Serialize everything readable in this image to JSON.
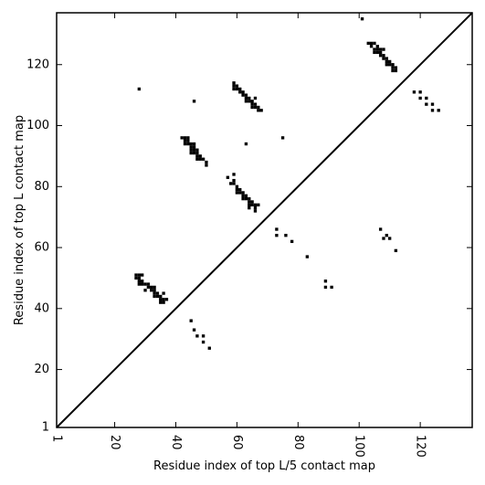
{
  "chart_data": {
    "type": "scatter",
    "xlabel": "Residue index of top L/5 contact map",
    "ylabel": "Residue index of top L contact map",
    "xlim": [
      1,
      137
    ],
    "ylim": [
      1,
      137
    ],
    "xticks": [
      1,
      20,
      40,
      60,
      80,
      100,
      120
    ],
    "yticks": [
      1,
      20,
      40,
      60,
      80,
      100,
      120
    ],
    "x_tick_labels": [
      "1",
      "20",
      "40",
      "60",
      "80",
      "100",
      "120"
    ],
    "y_tick_labels": [
      "1",
      "20",
      "40",
      "60",
      "80",
      "100",
      "120"
    ],
    "diagonal": true,
    "grid": false,
    "marker_color": "#000000",
    "series": [
      {
        "points": [
          [
            101,
            135
          ],
          [
            103,
            127
          ],
          [
            104,
            127
          ],
          [
            105,
            127
          ],
          [
            104,
            126
          ],
          [
            106,
            126
          ],
          [
            105,
            125
          ],
          [
            106,
            125
          ],
          [
            107,
            125
          ],
          [
            108,
            125
          ],
          [
            105,
            124
          ],
          [
            106,
            124
          ],
          [
            107,
            124
          ],
          [
            107,
            123
          ],
          [
            108,
            123
          ],
          [
            108,
            122
          ],
          [
            109,
            122
          ],
          [
            109,
            121
          ],
          [
            110,
            121
          ],
          [
            109,
            120
          ],
          [
            110,
            120
          ],
          [
            111,
            120
          ],
          [
            111,
            119
          ],
          [
            112,
            119
          ],
          [
            111,
            118
          ],
          [
            112,
            118
          ],
          [
            118,
            111
          ],
          [
            120,
            111
          ],
          [
            120,
            109
          ],
          [
            122,
            109
          ],
          [
            122,
            107
          ],
          [
            124,
            107
          ],
          [
            124,
            105
          ],
          [
            126,
            105
          ],
          [
            59,
            114
          ],
          [
            59,
            113
          ],
          [
            60,
            113
          ],
          [
            59,
            112
          ],
          [
            60,
            112
          ],
          [
            61,
            112
          ],
          [
            61,
            111
          ],
          [
            62,
            111
          ],
          [
            62,
            110
          ],
          [
            63,
            110
          ],
          [
            63,
            109
          ],
          [
            64,
            109
          ],
          [
            63,
            108
          ],
          [
            64,
            108
          ],
          [
            65,
            108
          ],
          [
            66,
            109
          ],
          [
            65,
            107
          ],
          [
            66,
            107
          ],
          [
            65,
            106
          ],
          [
            66,
            106
          ],
          [
            67,
            106
          ],
          [
            67,
            105
          ],
          [
            68,
            105
          ],
          [
            28,
            112
          ],
          [
            46,
            108
          ],
          [
            75,
            96
          ],
          [
            63,
            94
          ],
          [
            42,
            96
          ],
          [
            43,
            96
          ],
          [
            44,
            96
          ],
          [
            43,
            95
          ],
          [
            44,
            95
          ],
          [
            43,
            94
          ],
          [
            44,
            94
          ],
          [
            45,
            94
          ],
          [
            46,
            94
          ],
          [
            45,
            93
          ],
          [
            46,
            93
          ],
          [
            45,
            92
          ],
          [
            46,
            92
          ],
          [
            47,
            92
          ],
          [
            45,
            91
          ],
          [
            46,
            91
          ],
          [
            47,
            91
          ],
          [
            47,
            90
          ],
          [
            48,
            90
          ],
          [
            47,
            89
          ],
          [
            48,
            89
          ],
          [
            49,
            89
          ],
          [
            50,
            88
          ],
          [
            50,
            87
          ],
          [
            57,
            83
          ],
          [
            59,
            84
          ],
          [
            58,
            81
          ],
          [
            59,
            81
          ],
          [
            59,
            82
          ],
          [
            60,
            80
          ],
          [
            60,
            79
          ],
          [
            61,
            79
          ],
          [
            60,
            78
          ],
          [
            61,
            78
          ],
          [
            62,
            78
          ],
          [
            62,
            77
          ],
          [
            63,
            77
          ],
          [
            62,
            76
          ],
          [
            63,
            76
          ],
          [
            64,
            76
          ],
          [
            64,
            75
          ],
          [
            65,
            75
          ],
          [
            64,
            74
          ],
          [
            65,
            74
          ],
          [
            66,
            74
          ],
          [
            67,
            74
          ],
          [
            64,
            73
          ],
          [
            66,
            73
          ],
          [
            66,
            72
          ],
          [
            73,
            66
          ],
          [
            73,
            64
          ],
          [
            76,
            64
          ],
          [
            78,
            62
          ],
          [
            83,
            57
          ],
          [
            89,
            49
          ],
          [
            89,
            47
          ],
          [
            91,
            47
          ],
          [
            107,
            66
          ],
          [
            108,
            63
          ],
          [
            109,
            64
          ],
          [
            110,
            63
          ],
          [
            112,
            59
          ],
          [
            27,
            51
          ],
          [
            28,
            51
          ],
          [
            29,
            51
          ],
          [
            27,
            50
          ],
          [
            28,
            50
          ],
          [
            28,
            49
          ],
          [
            29,
            49
          ],
          [
            28,
            48
          ],
          [
            29,
            48
          ],
          [
            30,
            48
          ],
          [
            31,
            48
          ],
          [
            31,
            47
          ],
          [
            32,
            47
          ],
          [
            33,
            47
          ],
          [
            30,
            46
          ],
          [
            32,
            46
          ],
          [
            33,
            46
          ],
          [
            33,
            45
          ],
          [
            34,
            45
          ],
          [
            36,
            45
          ],
          [
            33,
            44
          ],
          [
            34,
            44
          ],
          [
            35,
            44
          ],
          [
            35,
            43
          ],
          [
            36,
            43
          ],
          [
            37,
            43
          ],
          [
            35,
            42
          ],
          [
            36,
            42
          ],
          [
            45,
            36
          ],
          [
            46,
            33
          ],
          [
            47,
            31
          ],
          [
            49,
            31
          ],
          [
            49,
            29
          ],
          [
            51,
            27
          ]
        ]
      }
    ]
  }
}
